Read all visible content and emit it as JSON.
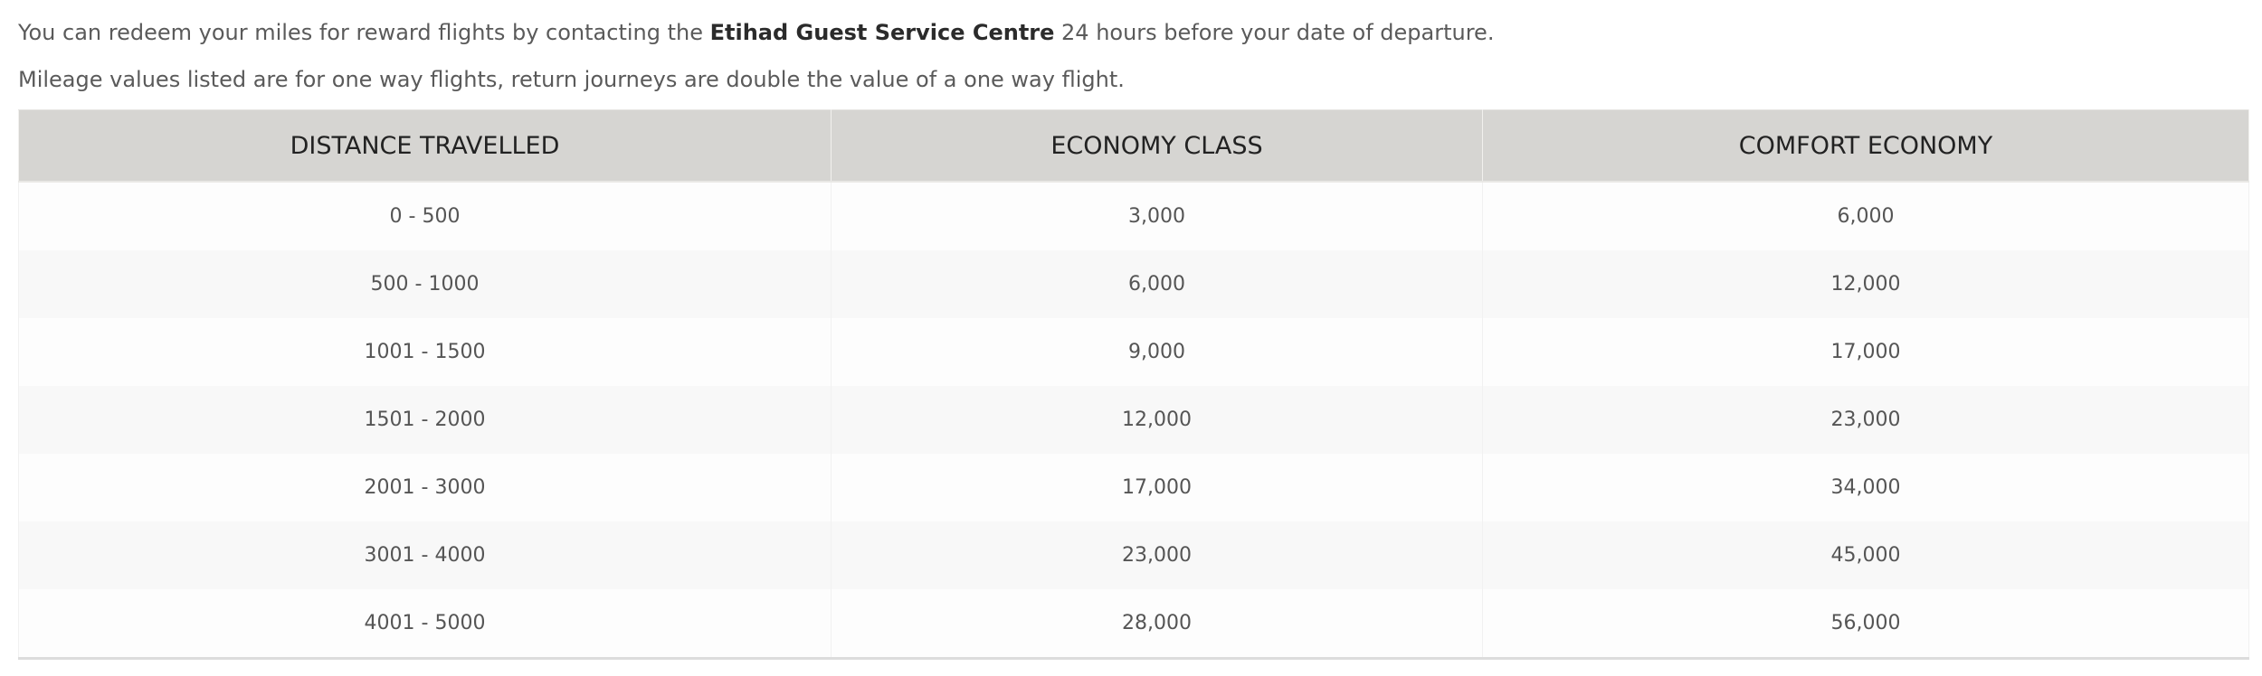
{
  "intro": {
    "line1_before": "You can redeem your miles for reward flights by contacting the ",
    "line1_bold": "Etihad Guest Service Centre",
    "line1_after": " 24 hours before your date of departure.",
    "line2": "Mileage values listed are for one way flights, return journeys are double the value of a one way flight."
  },
  "table": {
    "headers": [
      "DISTANCE TRAVELLED",
      "ECONOMY CLASS",
      "COMFORT ECONOMY"
    ],
    "rows": [
      [
        "0 - 500",
        "3,000",
        "6,000"
      ],
      [
        "500 - 1000",
        "6,000",
        "12,000"
      ],
      [
        "1001 - 1500",
        "9,000",
        "17,000"
      ],
      [
        "1501 - 2000",
        "12,000",
        "23,000"
      ],
      [
        "2001 - 3000",
        "17,000",
        "34,000"
      ],
      [
        "3001 - 4000",
        "23,000",
        "45,000"
      ],
      [
        "4001 - 5000",
        "28,000",
        "56,000"
      ]
    ]
  }
}
